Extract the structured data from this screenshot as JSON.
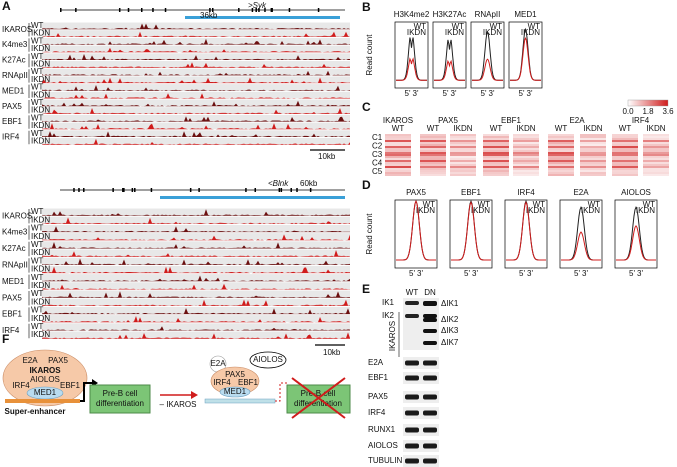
{
  "panel_a": {
    "label": "A",
    "top": {
      "length": "36kb",
      "gene": ">Syk",
      "scale": "10kb"
    },
    "bottom": {
      "gene": "<Blnk",
      "length": "60kb",
      "scale": "10kb"
    },
    "tracks": [
      "IKAROS",
      "K4me3",
      "K27Ac",
      "RNApII",
      "MED1",
      "PAX5",
      "EBF1",
      "IRF4"
    ],
    "conditions": [
      "WT",
      "IKDN"
    ]
  },
  "panel_b": {
    "label": "B",
    "y_label": "Read count",
    "plots": [
      "H3K4me2",
      "H3K27Ac",
      "RNApII",
      "MED1"
    ],
    "legend": [
      "WT",
      "IKDN"
    ],
    "x_ticks": [
      "5'",
      "3'"
    ]
  },
  "panel_c": {
    "label": "C",
    "columns": [
      "IKAROS",
      "PAX5",
      "EBF1",
      "E2A",
      "IRF4"
    ],
    "conditions": [
      "WT",
      "IKDN"
    ],
    "clusters": [
      "C1",
      "C2",
      "C3",
      "C4",
      "C5"
    ],
    "scale": [
      "0.0",
      "1.8",
      "3.6"
    ]
  },
  "panel_d": {
    "label": "D",
    "y_label": "Read count",
    "plots": [
      "PAX5",
      "EBF1",
      "IRF4",
      "E2A",
      "AIOLOS"
    ],
    "legend": [
      "WT",
      "IKDN"
    ],
    "x_ticks": [
      "5'",
      "3'"
    ]
  },
  "panel_e": {
    "label": "E",
    "lanes": [
      "WT",
      "DN"
    ],
    "group": "IKAROS",
    "left_bands": [
      "IK1",
      "IK2"
    ],
    "right_bands": [
      "ΔIK1",
      "ΔIK2",
      "ΔIK3",
      "ΔIK7"
    ],
    "proteins": [
      "E2A",
      "EBF1",
      "PAX5",
      "IRF4",
      "RUNX1",
      "AIOLOS",
      "TUBULIN"
    ]
  },
  "panel_f": {
    "label": "F",
    "left": {
      "factors": [
        "E2A",
        "PAX5",
        "IKAROS",
        "AIOLOS",
        "IRF4",
        "EBF1",
        "MED1"
      ],
      "enhancer": "Super-enhancer",
      "box": [
        "Pre-B cell",
        "differentiation"
      ]
    },
    "arrow": "– IKAROS",
    "right": {
      "factors": [
        "E2A",
        "AIOLOS",
        "PAX5",
        "IRF4",
        "EBF1",
        "MED1"
      ],
      "box": [
        "Pre-B cell",
        "differentiation"
      ]
    }
  }
}
